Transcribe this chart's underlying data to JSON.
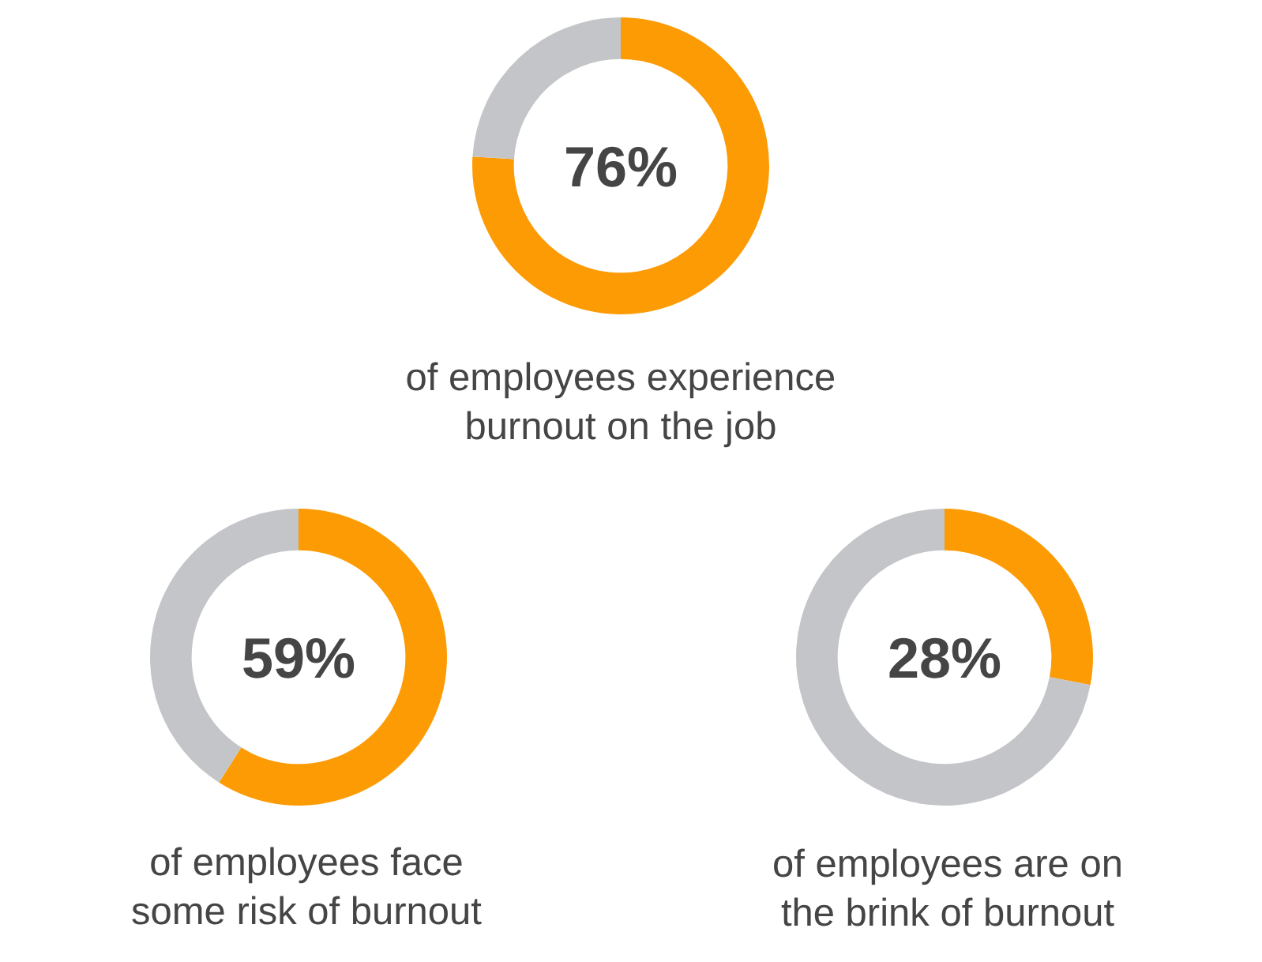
{
  "chart_data": [
    {
      "type": "donut",
      "categories": [
        null,
        null
      ],
      "values": [
        76,
        24
      ],
      "colors": [
        "#fd9b05",
        "#c3c5c8"
      ],
      "title": "76%",
      "annotations": [
        "of employees experience\nburnout on the job"
      ]
    },
    {
      "type": "donut",
      "categories": [
        null,
        null
      ],
      "values": [
        59,
        41
      ],
      "colors": [
        "#fd9b05",
        "#c3c5c8"
      ],
      "title": "59%",
      "annotations": [
        "of employees face\nsome risk of burnout"
      ]
    },
    {
      "type": "donut",
      "categories": [
        null,
        null
      ],
      "values": [
        28,
        72
      ],
      "colors": [
        "#fd9b05",
        "#c3c5c8"
      ],
      "title": "28%",
      "annotations": [
        "of employees are on\nthe brink of burnout"
      ]
    }
  ]
}
